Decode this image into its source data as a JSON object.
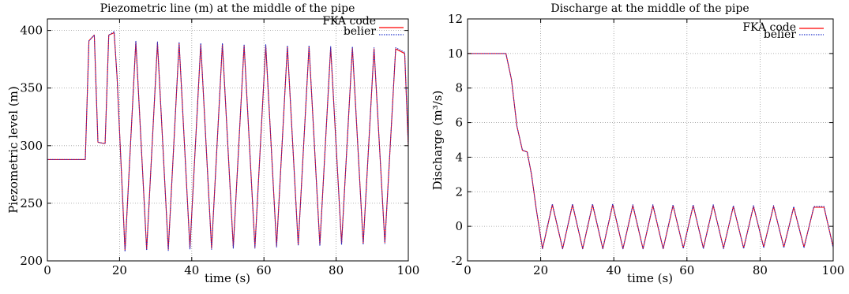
{
  "chart_data": [
    {
      "type": "line",
      "title": "Piezometric line (m) at the middle of the pipe",
      "xlabel": "time (s)",
      "ylabel": "Piezometric level (m)",
      "xlim": [
        0,
        100
      ],
      "ylim": [
        200,
        410
      ],
      "xticks": [
        "0",
        "20",
        "40",
        "60",
        "80",
        "100"
      ],
      "yticks": [
        "200",
        "250",
        "300",
        "350",
        "400"
      ],
      "grid": true,
      "legend_position": "top-right",
      "series": [
        {
          "name": "FKA code",
          "color": "#ff0000",
          "style": "solid",
          "x": [
            0,
            10.5,
            11.5,
            13,
            14,
            15.5,
            16,
            17,
            18.5,
            19.3,
            21.5,
            24.5,
            27.5,
            30.5,
            33.5,
            36.5,
            39.5,
            42.5,
            45.5,
            48.5,
            51.5,
            54.5,
            57.5,
            60.5,
            63.5,
            66.5,
            69.5,
            72.5,
            75.5,
            78.5,
            81.5,
            84.5,
            87.5,
            90.5,
            93.5,
            96.5,
            99,
            100
          ],
          "y": [
            288,
            288,
            391,
            396,
            303,
            302,
            302,
            396,
            398,
            360,
            209,
            390,
            210,
            389,
            210,
            389,
            211,
            388,
            211,
            388,
            212,
            387,
            212,
            387,
            213,
            386,
            214,
            386,
            214,
            385,
            215,
            385,
            215,
            384,
            216,
            384,
            380,
            300
          ]
        },
        {
          "name": "belier",
          "color": "#2233cc",
          "style": "dotted",
          "x": [
            0,
            10.5,
            11.5,
            13,
            14,
            15.5,
            16,
            17,
            18.5,
            19.3,
            21.5,
            24.5,
            27.5,
            30.5,
            33.5,
            36.5,
            39.5,
            42.5,
            45.5,
            48.5,
            51.5,
            54.5,
            57.5,
            60.5,
            63.5,
            66.5,
            69.5,
            72.5,
            75.5,
            78.5,
            81.5,
            84.5,
            87.5,
            90.5,
            93.5,
            96.5,
            99,
            100
          ],
          "y": [
            288,
            288,
            391,
            396,
            303,
            302,
            302,
            396,
            399,
            360,
            208,
            391,
            209,
            390,
            209,
            390,
            210,
            389,
            210,
            389,
            211,
            388,
            211,
            388,
            212,
            387,
            213,
            387,
            213,
            386,
            214,
            386,
            214,
            385,
            215,
            385,
            381,
            300
          ]
        }
      ]
    },
    {
      "type": "line",
      "title": "Discharge at the middle of the pipe",
      "xlabel": "time (s)",
      "ylabel": "Discharge (m³/s)",
      "xlim": [
        0,
        100
      ],
      "ylim": [
        -2,
        12
      ],
      "xticks": [
        "0",
        "20",
        "40",
        "60",
        "80",
        "100"
      ],
      "yticks": [
        "-2",
        "0",
        "2",
        "4",
        "6",
        "8",
        "10",
        "12"
      ],
      "grid": true,
      "legend_position": "top-right",
      "series": [
        {
          "name": "FKA code",
          "color": "#ff0000",
          "style": "solid",
          "x": [
            0,
            10.5,
            12,
            13.5,
            15,
            16.3,
            17.5,
            18.8,
            20.5,
            23.2,
            26,
            28.7,
            31.5,
            34.2,
            37,
            39.7,
            42.5,
            45.2,
            48,
            50.7,
            53.5,
            56.2,
            59,
            61.7,
            64.5,
            67.2,
            70,
            72.7,
            75.5,
            78.2,
            81,
            83.7,
            86.5,
            89.2,
            92,
            94.7,
            97.5,
            100
          ],
          "y": [
            10,
            10,
            8.5,
            5.8,
            4.4,
            4.3,
            3,
            1,
            -1.3,
            1.25,
            -1.3,
            1.25,
            -1.3,
            1.25,
            -1.3,
            1.25,
            -1.3,
            1.2,
            -1.3,
            1.2,
            -1.3,
            1.2,
            -1.25,
            1.2,
            -1.25,
            1.2,
            -1.25,
            1.15,
            -1.25,
            1.15,
            -1.2,
            1.15,
            -1.2,
            1.1,
            -1.2,
            1.1,
            1.1,
            -1.2
          ]
        },
        {
          "name": "belier",
          "color": "#2233cc",
          "style": "dotted",
          "x": [
            0,
            10.5,
            12,
            13.5,
            15,
            16.3,
            17.5,
            18.8,
            20.5,
            23.2,
            26,
            28.7,
            31.5,
            34.2,
            37,
            39.7,
            42.5,
            45.2,
            48,
            50.7,
            53.5,
            56.2,
            59,
            61.7,
            64.5,
            67.2,
            70,
            72.7,
            75.5,
            78.2,
            81,
            83.7,
            86.5,
            89.2,
            92,
            94.7,
            97.5,
            100
          ],
          "y": [
            10,
            10,
            8.5,
            5.8,
            4.4,
            4.3,
            3,
            1,
            -1.3,
            1.3,
            -1.3,
            1.3,
            -1.3,
            1.3,
            -1.3,
            1.3,
            -1.3,
            1.25,
            -1.3,
            1.25,
            -1.3,
            1.25,
            -1.3,
            1.25,
            -1.3,
            1.25,
            -1.3,
            1.2,
            -1.3,
            1.2,
            -1.25,
            1.2,
            -1.25,
            1.15,
            -1.25,
            1.15,
            1.15,
            -1.25
          ]
        }
      ]
    }
  ]
}
